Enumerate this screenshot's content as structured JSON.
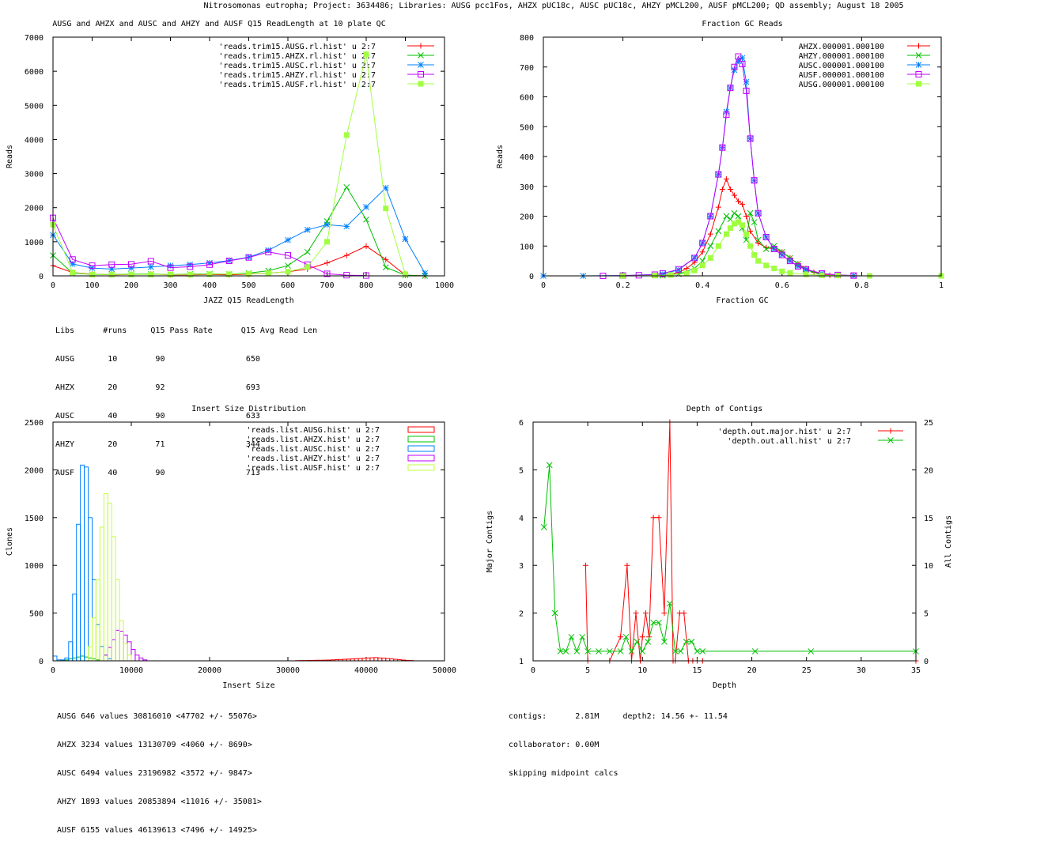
{
  "page_title": "Nitrosomonas eutropha; Project: 3634486; Libraries: AUSG pcc1Fos, AHZX pUC18c, AUSC pUC18c, AHZY pMCL200, AUSF pMCL200; QD assembly; August 18 2005",
  "colors": {
    "red": "#ff0000",
    "green": "#00c000",
    "blue": "#0080ff",
    "purple": "#c000ff",
    "lime": "#a0ff40",
    "lime2": "#c0ff40",
    "axis": "#000000"
  },
  "chart_data": [
    {
      "id": "readlength",
      "type": "line",
      "title": "AUSG and AHZX and AUSC and AHZY and AUSF Q15 ReadLength at 10 plate QC",
      "xlabel": "JAZZ Q15 ReadLength",
      "ylabel": "Reads",
      "xlim": [
        0,
        1000
      ],
      "ylim": [
        0,
        7000
      ],
      "xticks": [
        "0",
        "100",
        "200",
        "300",
        "400",
        "500",
        "600",
        "700",
        "800",
        "900",
        "1000"
      ],
      "yticks": [
        "0",
        "1000",
        "2000",
        "3000",
        "4000",
        "5000",
        "6000",
        "7000"
      ],
      "series": [
        {
          "name": "'reads.trim15.AUSG.rl.hist' u 2:7",
          "color": "red",
          "marker": "plus",
          "x": [
            0,
            50,
            100,
            150,
            200,
            250,
            300,
            350,
            400,
            450,
            500,
            550,
            600,
            650,
            700,
            750,
            800,
            850,
            900,
            950
          ],
          "y": [
            300,
            100,
            50,
            30,
            40,
            50,
            30,
            30,
            40,
            30,
            50,
            80,
            120,
            200,
            380,
            600,
            870,
            480,
            20,
            0
          ]
        },
        {
          "name": "'reads.trim15.AHZX.rl.hist' u 2:7",
          "color": "green",
          "marker": "x",
          "x": [
            0,
            50,
            100,
            150,
            200,
            250,
            300,
            350,
            400,
            450,
            500,
            550,
            600,
            650,
            700,
            750,
            800,
            850,
            900,
            950
          ],
          "y": [
            600,
            80,
            40,
            40,
            50,
            50,
            40,
            50,
            60,
            50,
            80,
            150,
            300,
            700,
            1600,
            2600,
            1650,
            250,
            20,
            0
          ]
        },
        {
          "name": "'reads.trim15.AUSC.rl.hist' u 2:7",
          "color": "blue",
          "marker": "star",
          "x": [
            0,
            50,
            100,
            150,
            200,
            250,
            300,
            350,
            400,
            450,
            500,
            550,
            600,
            650,
            700,
            750,
            800,
            850,
            900,
            950
          ],
          "y": [
            1200,
            350,
            230,
            200,
            230,
            260,
            300,
            330,
            380,
            450,
            550,
            750,
            1050,
            1350,
            1500,
            1450,
            2020,
            2580,
            1080,
            80
          ]
        },
        {
          "name": "'reads.trim15.AHZY.rl.hist' u 2:7",
          "color": "purple",
          "marker": "box",
          "x": [
            0,
            50,
            100,
            150,
            200,
            250,
            300,
            350,
            400,
            450,
            500,
            550,
            600,
            650,
            700,
            750,
            800
          ],
          "y": [
            1700,
            480,
            300,
            330,
            340,
            430,
            240,
            270,
            330,
            440,
            540,
            700,
            600,
            330,
            60,
            20,
            10
          ]
        },
        {
          "name": "'reads.trim15.AUSF.rl.hist' u 2:7",
          "color": "lime",
          "marker": "fbox",
          "x": [
            0,
            50,
            100,
            150,
            200,
            250,
            300,
            350,
            400,
            450,
            500,
            550,
            600,
            650,
            700,
            750,
            800,
            850,
            900
          ],
          "y": [
            1500,
            100,
            40,
            40,
            40,
            40,
            40,
            40,
            50,
            50,
            60,
            80,
            120,
            260,
            1000,
            4130,
            6500,
            1980,
            50
          ]
        }
      ]
    },
    {
      "id": "gc",
      "type": "line",
      "title": "Fraction GC Reads",
      "xlabel": "Fraction GC",
      "ylabel": "Reads",
      "xlim": [
        0,
        1
      ],
      "ylim": [
        0,
        800
      ],
      "xticks": [
        "0",
        "0.2",
        "0.4",
        "0.6",
        "0.8",
        "1"
      ],
      "yticks": [
        "0",
        "100",
        "200",
        "300",
        "400",
        "500",
        "600",
        "700",
        "800"
      ],
      "series": [
        {
          "name": "AHZX.000001.000100",
          "color": "red",
          "marker": "plus",
          "x": [
            0.3,
            0.32,
            0.34,
            0.36,
            0.38,
            0.4,
            0.42,
            0.44,
            0.45,
            0.46,
            0.47,
            0.48,
            0.49,
            0.5,
            0.51,
            0.52,
            0.54,
            0.56,
            0.58,
            0.6,
            0.62,
            0.64,
            0.66,
            0.68,
            0.7,
            0.72
          ],
          "y": [
            2,
            5,
            12,
            25,
            45,
            80,
            140,
            230,
            290,
            325,
            290,
            270,
            250,
            240,
            200,
            150,
            110,
            95,
            90,
            80,
            60,
            40,
            25,
            12,
            5,
            2
          ]
        },
        {
          "name": "AHZY.000001.000100",
          "color": "green",
          "marker": "x",
          "x": [
            0.3,
            0.34,
            0.38,
            0.4,
            0.42,
            0.44,
            0.46,
            0.47,
            0.48,
            0.49,
            0.5,
            0.51,
            0.52,
            0.53,
            0.54,
            0.56,
            0.58,
            0.6,
            0.62,
            0.64,
            0.66,
            0.7
          ],
          "y": [
            1,
            6,
            25,
            50,
            100,
            150,
            200,
            190,
            210,
            200,
            160,
            120,
            210,
            180,
            120,
            90,
            100,
            80,
            60,
            40,
            20,
            3
          ]
        },
        {
          "name": "AUSC.000001.000100",
          "color": "blue",
          "marker": "star",
          "x": [
            0,
            0.1,
            0.2,
            0.3,
            0.34,
            0.38,
            0.4,
            0.42,
            0.44,
            0.45,
            0.46,
            0.47,
            0.48,
            0.49,
            0.5,
            0.51,
            0.52,
            0.53,
            0.54,
            0.56,
            0.58,
            0.6,
            0.62,
            0.64,
            0.66,
            0.7,
            0.74,
            0.78
          ],
          "y": [
            0,
            0,
            1,
            6,
            20,
            60,
            110,
            200,
            340,
            430,
            550,
            630,
            690,
            720,
            730,
            650,
            460,
            320,
            210,
            130,
            90,
            70,
            50,
            32,
            22,
            8,
            3,
            1
          ]
        },
        {
          "name": "AUSF.000001.000100",
          "color": "purple",
          "marker": "box",
          "x": [
            0.15,
            0.2,
            0.24,
            0.28,
            0.3,
            0.34,
            0.38,
            0.4,
            0.42,
            0.44,
            0.45,
            0.46,
            0.47,
            0.48,
            0.49,
            0.5,
            0.51,
            0.52,
            0.53,
            0.54,
            0.56,
            0.58,
            0.6,
            0.62,
            0.64,
            0.66,
            0.7,
            0.74,
            0.78
          ],
          "y": [
            0,
            1,
            2,
            4,
            8,
            22,
            60,
            110,
            200,
            340,
            430,
            540,
            630,
            700,
            735,
            710,
            620,
            460,
            320,
            210,
            130,
            90,
            70,
            50,
            32,
            22,
            8,
            3,
            1
          ]
        },
        {
          "name": "AUSG.000001.000100",
          "color": "lime",
          "marker": "fbox",
          "x": [
            0.2,
            0.28,
            0.32,
            0.36,
            0.38,
            0.4,
            0.42,
            0.44,
            0.46,
            0.47,
            0.48,
            0.49,
            0.5,
            0.51,
            0.52,
            0.53,
            0.54,
            0.56,
            0.58,
            0.6,
            0.62,
            0.66,
            0.7,
            0.74,
            0.82,
            1.0
          ],
          "y": [
            0,
            1,
            3,
            8,
            18,
            35,
            60,
            100,
            140,
            160,
            175,
            180,
            170,
            140,
            100,
            70,
            50,
            35,
            25,
            15,
            10,
            5,
            2,
            1,
            0,
            0
          ]
        }
      ]
    },
    {
      "id": "insert",
      "type": "bar",
      "title": "Insert Size Distribution",
      "xlabel": "Insert Size",
      "ylabel": "Clones",
      "xlim": [
        0,
        50000
      ],
      "ylim": [
        0,
        2500
      ],
      "xticks": [
        "0",
        "10000",
        "20000",
        "30000",
        "40000",
        "50000"
      ],
      "yticks": [
        "0",
        "500",
        "1000",
        "1500",
        "2000",
        "2500"
      ],
      "series": [
        {
          "name": "'reads.list.AUSG.hist' u 2:7",
          "color": "red",
          "x0": 31000,
          "w": 500,
          "values": [
            2,
            3,
            3,
            4,
            5,
            6,
            6,
            7,
            8,
            10,
            12,
            14,
            16,
            18,
            20,
            22,
            24,
            26,
            30,
            32,
            34,
            30,
            28,
            24,
            20,
            16,
            12,
            8,
            5,
            3
          ]
        },
        {
          "name": "'reads.list.AHZX.hist' u 2:7",
          "color": "green",
          "x0": 1000,
          "w": 500,
          "values": [
            5,
            10,
            20,
            30,
            40,
            50,
            40,
            30,
            20,
            10
          ]
        },
        {
          "name": "'reads.list.AUSC.hist' u 2:7",
          "color": "blue",
          "x0": 0,
          "w": 500,
          "values": [
            50,
            10,
            10,
            30,
            200,
            700,
            1430,
            2050,
            2030,
            1500,
            850,
            380,
            150,
            60,
            20
          ]
        },
        {
          "name": "'reads.list.AHZY.hist' u 2:7",
          "color": "purple",
          "x0": 6500,
          "w": 500,
          "values": [
            60,
            140,
            220,
            320,
            310,
            270,
            200,
            120,
            60,
            30,
            10
          ]
        },
        {
          "name": "'reads.list.AUSF.hist' u 2:7",
          "color": "lime2",
          "x0": 4500,
          "w": 500,
          "values": [
            150,
            450,
            850,
            1400,
            1750,
            1650,
            1300,
            850,
            420,
            180,
            60
          ]
        }
      ]
    },
    {
      "id": "depth",
      "type": "line",
      "title": "Depth of Contigs",
      "xlabel": "Depth",
      "ylabel": "Major Contigs",
      "y2label": "All Contigs",
      "xlim": [
        0,
        35
      ],
      "ylim": [
        1,
        6
      ],
      "y2lim": [
        0,
        25
      ],
      "xticks": [
        "0",
        "5",
        "10",
        "15",
        "20",
        "25",
        "30",
        "35"
      ],
      "yticks": [
        "1",
        "2",
        "3",
        "4",
        "5",
        "6"
      ],
      "y2ticks": [
        "0",
        "5",
        "10",
        "15",
        "20",
        "25"
      ],
      "series": [
        {
          "name": "'depth.out.major.hist' u 2:7",
          "color": "red",
          "marker": "plus",
          "axis": "y1",
          "x": [
            4.8,
            5,
            7,
            8,
            8.6,
            9,
            9.4,
            9.8,
            10,
            10.3,
            10.6,
            11,
            11.5,
            12,
            12.5,
            12.8,
            13,
            13.4,
            13.8,
            14.2,
            14.6,
            15,
            15.5,
            35
          ],
          "y": [
            3,
            1,
            1,
            1.5,
            3,
            1,
            2,
            1,
            1.5,
            2,
            1.5,
            4,
            4,
            2,
            6,
            1,
            1,
            2,
            2,
            1,
            1,
            1,
            1,
            1
          ]
        },
        {
          "name": "'depth.out.all.hist' u 2:7",
          "color": "green",
          "marker": "x",
          "axis": "y2",
          "x": [
            1,
            1.5,
            2,
            2.5,
            3,
            3.5,
            4,
            4.5,
            5,
            6,
            7,
            8,
            8.5,
            9,
            9.5,
            10,
            10.5,
            11,
            11.5,
            12,
            12.5,
            13,
            13.5,
            14,
            14.5,
            15,
            15.5,
            20.3,
            25.4,
            35
          ],
          "y": [
            14,
            20.5,
            5,
            1,
            1,
            2.5,
            1,
            2.5,
            1,
            1,
            1,
            1,
            2.5,
            1,
            2,
            1,
            2,
            4,
            4,
            2,
            6,
            1,
            1,
            2,
            2,
            1,
            1,
            1,
            1,
            1
          ]
        }
      ]
    }
  ],
  "readlength_table": {
    "header": "Libs      #runs     Q15 Pass Rate      Q15 Avg Read Len",
    "rows": [
      "AUSG       10        90                 650",
      "AHZX       20        92                 693",
      "AUSC       40        90                 633",
      "AHZY       20        71                 344",
      "AUSF       40        90                 713"
    ]
  },
  "insert_stats": [
    "AUSG 646 values 30816010 <47702 +/- 55076>",
    "AHZX 3234 values 13130709 <4060 +/- 8690>",
    "AUSC 6494 values 23196982 <3572 +/- 9847>",
    "AHZY 1893 values 20853894 <11016 +/- 35081>",
    "AUSF 6155 values 46139613 <7496 +/- 14925>"
  ],
  "depth_stats": [
    "contigs:      2.81M     depth2: 14.56 +- 11.54",
    "collaborator: 0.00M",
    "skipping midpoint calcs"
  ]
}
